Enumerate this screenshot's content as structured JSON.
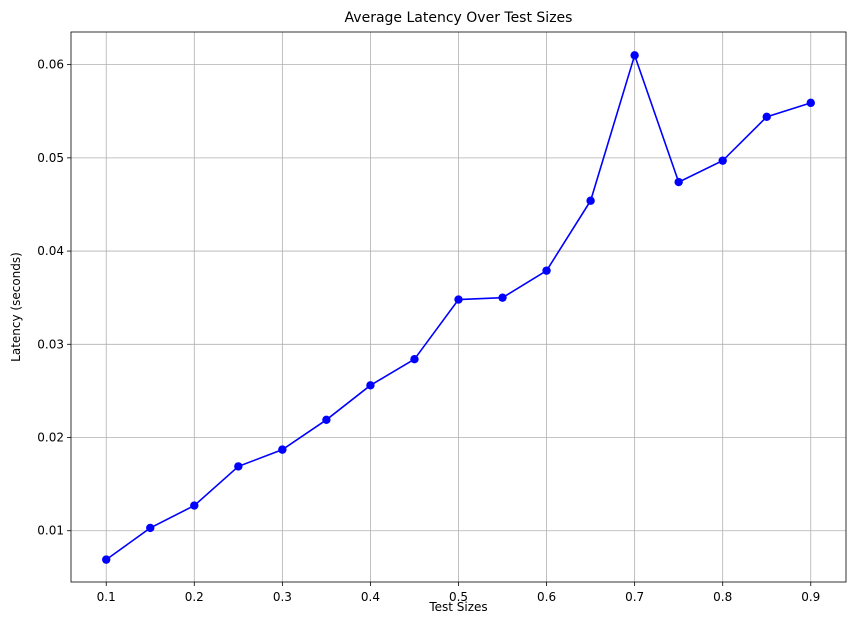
{
  "chart_data": {
    "type": "line",
    "title": "Average Latency Over Test Sizes",
    "xlabel": "Test Sizes",
    "ylabel": "Latency (seconds)",
    "xlim": [
      0.06,
      0.94
    ],
    "ylim": [
      0.0045,
      0.0635
    ],
    "grid": true,
    "x": [
      0.1,
      0.15,
      0.2,
      0.25,
      0.3,
      0.35,
      0.4,
      0.45,
      0.5,
      0.55,
      0.6,
      0.65,
      0.7,
      0.75,
      0.8,
      0.85,
      0.9
    ],
    "series": [
      {
        "color": "#0000ff",
        "marker": "circle",
        "values": [
          0.0069,
          0.0103,
          0.0127,
          0.0169,
          0.0187,
          0.0219,
          0.0256,
          0.0284,
          0.0348,
          0.035,
          0.0379,
          0.0454,
          0.061,
          0.0474,
          0.0497,
          0.0544,
          0.0559
        ]
      }
    ],
    "xticks": [
      "0.1",
      "0.2",
      "0.3",
      "0.4",
      "0.5",
      "0.6",
      "0.7",
      "0.8",
      "0.9"
    ],
    "xtick_values": [
      0.1,
      0.2,
      0.3,
      0.4,
      0.5,
      0.6,
      0.7,
      0.8,
      0.9
    ],
    "yticks": [
      "0.01",
      "0.02",
      "0.03",
      "0.04",
      "0.05",
      "0.06"
    ],
    "ytick_values": [
      0.01,
      0.02,
      0.03,
      0.04,
      0.05,
      0.06
    ]
  }
}
